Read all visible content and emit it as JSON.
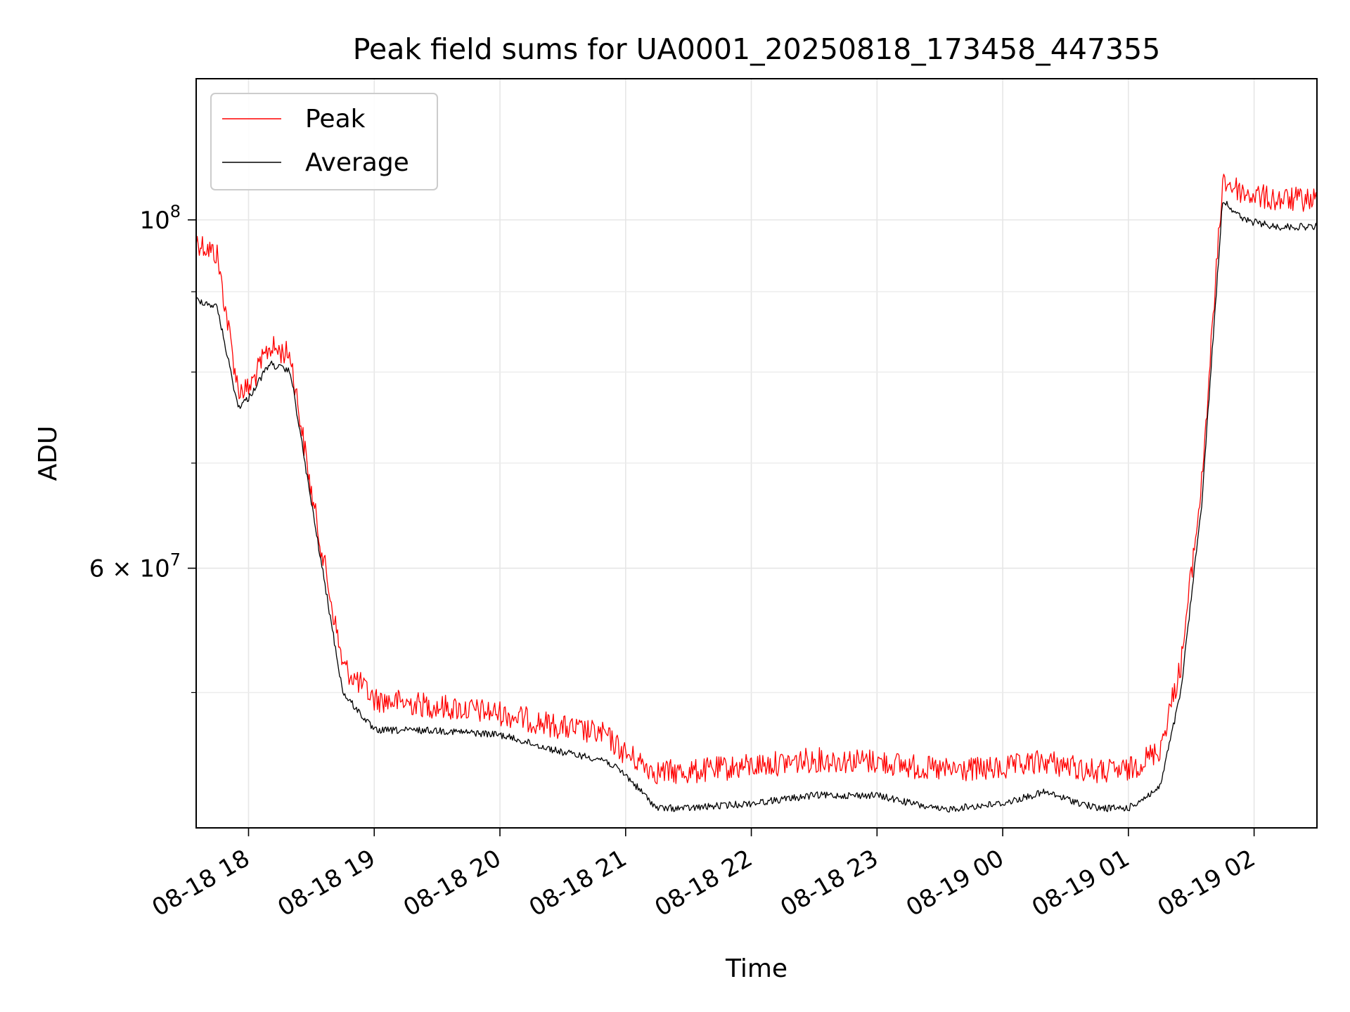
{
  "chart_data": {
    "type": "line",
    "title": "Peak field sums for UA0001_20250818_173458_447355",
    "xlabel": "Time",
    "ylabel": "ADU",
    "yscale": "log",
    "ylim": [
      41000000,
      123000000
    ],
    "xlim": [
      "2025-08-18 17:35",
      "2025-08-19 02:30"
    ],
    "x_tick_labels": [
      "08-18 18",
      "08-18 19",
      "08-18 20",
      "08-18 21",
      "08-18 22",
      "08-18 23",
      "08-19 00",
      "08-19 01",
      "08-19 02"
    ],
    "x_ticks": [
      "2025-08-18 18:00",
      "2025-08-18 19:00",
      "2025-08-18 20:00",
      "2025-08-18 21:00",
      "2025-08-18 22:00",
      "2025-08-18 23:00",
      "2025-08-19 00:00",
      "2025-08-19 01:00",
      "2025-08-19 02:00"
    ],
    "y_major_ticks": [
      {
        "value": 100000000,
        "label_base": "10",
        "label_exp": "8"
      },
      {
        "value": 60000000,
        "label_base": "6 × 10",
        "label_exp": "7"
      }
    ],
    "y_minor_ticks": [
      50000000,
      70000000,
      80000000,
      90000000
    ],
    "grid": true,
    "legend": {
      "location": "upper-left",
      "entries": [
        "Peak",
        "Average"
      ]
    },
    "series": [
      {
        "name": "Peak",
        "color": "#ff0000",
        "x": [
          "2025-08-18 17:35",
          "2025-08-18 17:45",
          "2025-08-18 17:55",
          "2025-08-18 18:00",
          "2025-08-18 18:10",
          "2025-08-18 18:20",
          "2025-08-18 18:30",
          "2025-08-18 18:45",
          "2025-08-18 19:00",
          "2025-08-18 19:30",
          "2025-08-18 20:00",
          "2025-08-18 20:30",
          "2025-08-18 20:50",
          "2025-08-18 21:00",
          "2025-08-18 21:15",
          "2025-08-18 21:30",
          "2025-08-18 22:00",
          "2025-08-18 22:30",
          "2025-08-18 23:00",
          "2025-08-18 23:30",
          "2025-08-19 00:00",
          "2025-08-19 00:20",
          "2025-08-19 00:45",
          "2025-08-19 01:00",
          "2025-08-19 01:15",
          "2025-08-19 01:25",
          "2025-08-19 01:35",
          "2025-08-19 01:45",
          "2025-08-19 01:55",
          "2025-08-19 02:10",
          "2025-08-19 02:30"
        ],
        "y": [
          97000000,
          95000000,
          78000000,
          78000000,
          83000000,
          82000000,
          67000000,
          52000000,
          49500000,
          49000000,
          48500000,
          47500000,
          47000000,
          45700000,
          44500000,
          44500000,
          44900000,
          45300000,
          45200000,
          44600000,
          44700000,
          45200000,
          44500000,
          44600000,
          46000000,
          52000000,
          68000000,
          106000000,
          104000000,
          103000000,
          103000000
        ]
      },
      {
        "name": "Average",
        "color": "#000000",
        "x": [
          "2025-08-18 17:35",
          "2025-08-18 17:45",
          "2025-08-18 17:55",
          "2025-08-18 18:00",
          "2025-08-18 18:10",
          "2025-08-18 18:20",
          "2025-08-18 18:30",
          "2025-08-18 18:45",
          "2025-08-18 19:00",
          "2025-08-18 19:30",
          "2025-08-18 20:00",
          "2025-08-18 20:30",
          "2025-08-18 20:50",
          "2025-08-18 21:00",
          "2025-08-18 21:15",
          "2025-08-18 21:30",
          "2025-08-18 22:00",
          "2025-08-18 22:30",
          "2025-08-18 23:00",
          "2025-08-18 23:30",
          "2025-08-19 00:00",
          "2025-08-19 00:20",
          "2025-08-19 00:45",
          "2025-08-19 01:00",
          "2025-08-19 01:15",
          "2025-08-19 01:25",
          "2025-08-19 01:35",
          "2025-08-19 01:45",
          "2025-08-19 01:55",
          "2025-08-19 02:10",
          "2025-08-19 02:30"
        ],
        "y": [
          89000000,
          88000000,
          76000000,
          77000000,
          81000000,
          80000000,
          66000000,
          50000000,
          47300000,
          47300000,
          47000000,
          45800000,
          45300000,
          44300000,
          42200000,
          42200000,
          42500000,
          43000000,
          43000000,
          42100000,
          42500000,
          43200000,
          42200000,
          42200000,
          43500000,
          50000000,
          66000000,
          103000000,
          100000000,
          99000000,
          99000000
        ]
      }
    ]
  }
}
